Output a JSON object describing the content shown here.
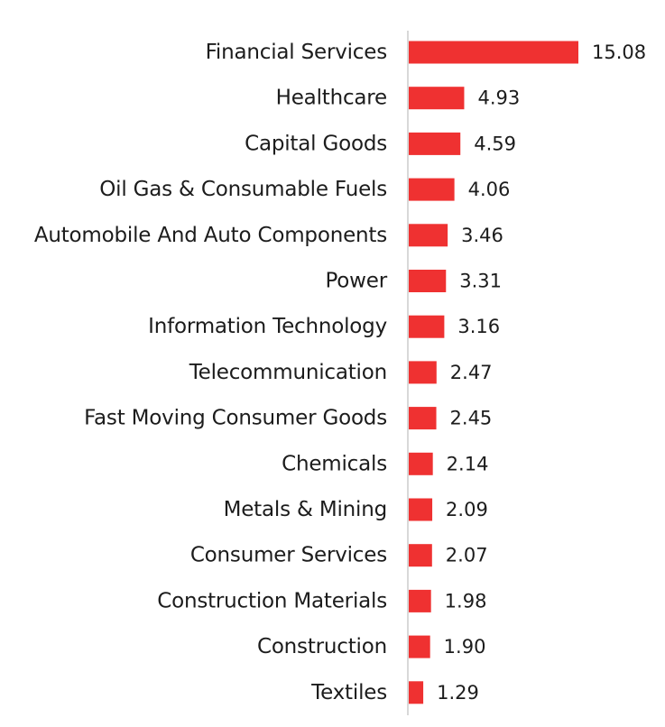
{
  "chart_data": {
    "type": "bar",
    "orientation": "horizontal",
    "categories": [
      "Financial Services",
      "Healthcare",
      "Capital Goods",
      "Oil Gas & Consumable Fuels",
      "Automobile And Auto Components",
      "Power",
      "Information Technology",
      "Telecommunication",
      "Fast Moving Consumer Goods",
      "Chemicals",
      "Metals & Mining",
      "Consumer Services",
      "Construction Materials",
      "Construction",
      "Textiles"
    ],
    "values": [
      15.08,
      4.93,
      4.59,
      4.06,
      3.46,
      3.31,
      3.16,
      2.47,
      2.45,
      2.14,
      2.09,
      2.07,
      1.98,
      1.9,
      1.29
    ],
    "value_labels": [
      "15.08",
      "4.93",
      "4.59",
      "4.06",
      "3.46",
      "3.31",
      "3.16",
      "2.47",
      "2.45",
      "2.14",
      "2.09",
      "2.07",
      "1.98",
      "1.90",
      "1.29"
    ],
    "title": "",
    "xlabel": "",
    "ylabel": "",
    "xlim": [
      0,
      15.08
    ],
    "grid": false,
    "legend": "none",
    "bar_color": "#ef3131",
    "axis_color": "#cccccc",
    "text_color": "#1c1c1c"
  }
}
